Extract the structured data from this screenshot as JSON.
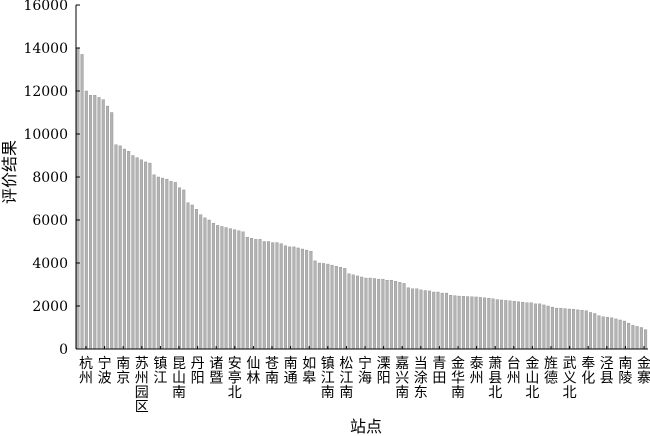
{
  "chart_data": {
    "type": "bar",
    "title": "",
    "xlabel": "站点",
    "ylabel": "评价结果",
    "ylim": [
      0,
      16000
    ],
    "yticks": [
      0,
      2000,
      4000,
      6000,
      8000,
      10000,
      12000,
      14000,
      16000
    ],
    "grid": false,
    "legend": "none",
    "bar_color": "#b3b3b3",
    "bar_edge_color": "#8c8c8c",
    "x_tick_labels": [
      "杭州",
      "宁波",
      "南京",
      "苏州园区",
      "镇江",
      "昆山南",
      "丹阳",
      "诸暨",
      "安亭北",
      "仙林",
      "苍南",
      "南通",
      "如皋",
      "镇江南",
      "松江南",
      "宁海",
      "溧阳",
      "嘉兴南",
      "当涂东",
      "青田",
      "金华南",
      "泰州",
      "萧县北",
      "台州",
      "金山北",
      "旌德",
      "武义北",
      "奉化",
      "泾县",
      "南陵",
      "金寨"
    ],
    "values": [
      14000,
      13700,
      12000,
      11800,
      11800,
      11700,
      11600,
      11300,
      11000,
      9500,
      9450,
      9300,
      9200,
      9000,
      8900,
      8800,
      8700,
      8650,
      8100,
      8000,
      7950,
      7900,
      7800,
      7750,
      7500,
      7400,
      6800,
      6700,
      6500,
      6250,
      6100,
      6000,
      5850,
      5750,
      5700,
      5650,
      5600,
      5550,
      5500,
      5450,
      5200,
      5150,
      5100,
      5100,
      5000,
      5000,
      4950,
      4950,
      4900,
      4800,
      4750,
      4750,
      4700,
      4650,
      4600,
      4550,
      4100,
      4000,
      3980,
      3950,
      3900,
      3850,
      3800,
      3750,
      3500,
      3450,
      3400,
      3350,
      3300,
      3300,
      3280,
      3250,
      3250,
      3200,
      3200,
      3150,
      3100,
      3050,
      2850,
      2800,
      2800,
      2750,
      2720,
      2700,
      2650,
      2650,
      2600,
      2600,
      2500,
      2480,
      2460,
      2450,
      2440,
      2430,
      2420,
      2400,
      2380,
      2360,
      2340,
      2300,
      2280,
      2260,
      2240,
      2220,
      2200,
      2180,
      2150,
      2150,
      2100,
      2100,
      2050,
      2000,
      1950,
      1900,
      1900,
      1880,
      1860,
      1850,
      1820,
      1800,
      1780,
      1700,
      1650,
      1550,
      1500,
      1480,
      1450,
      1400,
      1350,
      1300,
      1200,
      1100,
      1050,
      1000,
      900
    ]
  }
}
